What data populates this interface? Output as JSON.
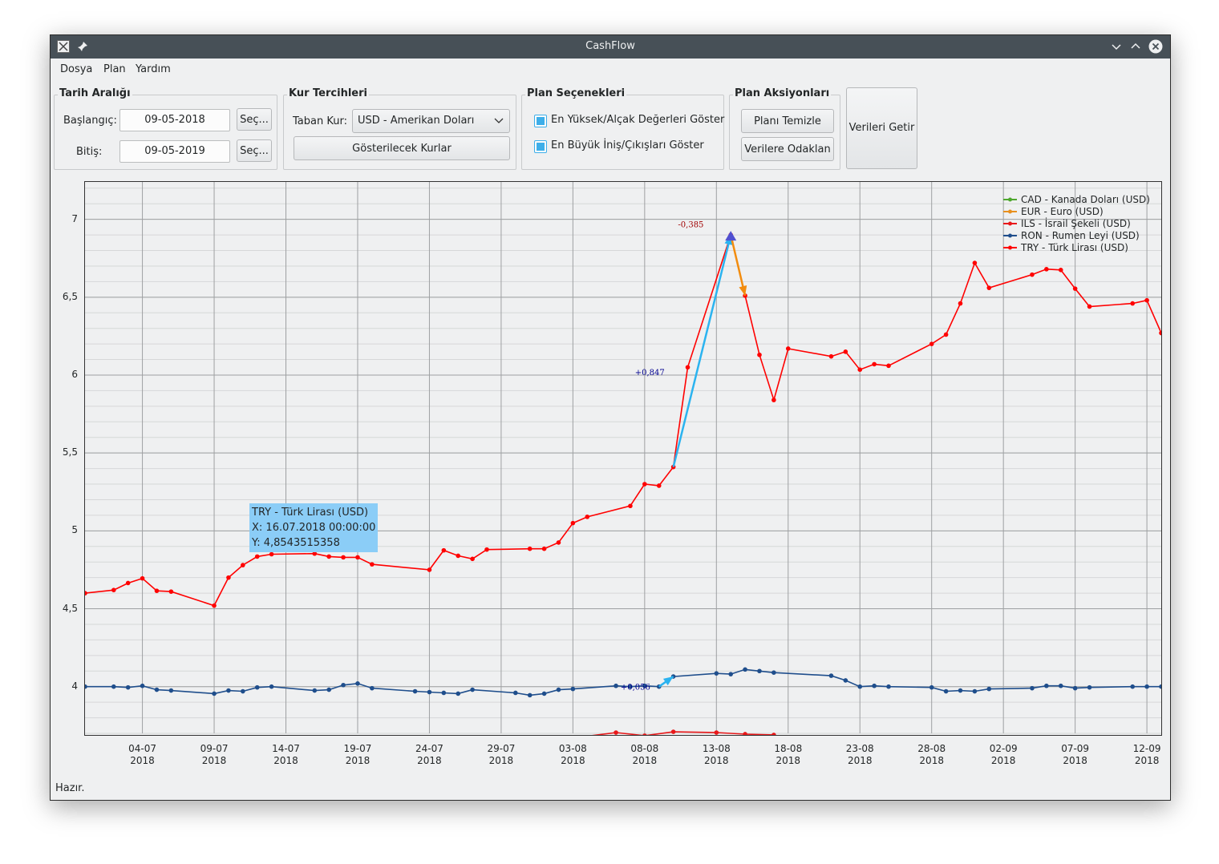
{
  "window": {
    "title": "CashFlow",
    "status": "Hazır."
  },
  "menu": [
    "Dosya",
    "Plan",
    "Yardım"
  ],
  "date_range": {
    "title": "Tarih Aralığı",
    "start_label": "Başlangıç:",
    "start_value": "09-05-2018",
    "end_label": "Bitiş:",
    "end_value": "09-05-2019",
    "pick_label": "Seç..."
  },
  "currency_prefs": {
    "title": "Kur Tercihleri",
    "base_label": "Taban Kur:",
    "base_value": "USD - Amerikan Doları",
    "shown_button": "Gösterilecek Kurlar"
  },
  "plan_options": {
    "title": "Plan Seçenekleri",
    "option1": "En Yüksek/Alçak Değerleri Göster",
    "option1_checked": true,
    "option2": "En Büyük İniş/Çıkışları Göster",
    "option2_checked": true
  },
  "plan_actions": {
    "title": "Plan Aksiyonları",
    "clear": "Planı Temizle",
    "focus": "Verilere Odaklan"
  },
  "fetch_button": "Verileri Getir",
  "tooltip": {
    "line1": "TRY - Türk Lirası (USD)",
    "line2": "X: 16.07.2018 00:00:00",
    "line3": "Y: 4,8543515358"
  },
  "colors": {
    "CAD": "#4ea72e",
    "EUR": "#e8901e",
    "ILS": "#e8181a",
    "RON": "#1f4e8c",
    "TRY": "#ff0000",
    "rise_arrow": "#2bb3f0",
    "fall_arrow": "#f28c0f",
    "peak_marker": "#5050d0"
  },
  "chart_data": {
    "type": "line",
    "ylim": [
      3.7,
      7.24
    ],
    "yticks": [
      4,
      4.5,
      5,
      5.5,
      6,
      6.5,
      7
    ],
    "ytick_labels": [
      "4",
      "4,5",
      "5",
      "5,5",
      "6",
      "6,5",
      "7"
    ],
    "xlim": [
      "2018-06-30",
      "2018-09-13"
    ],
    "xticks": [
      {
        "date": "2018-07-04",
        "label1": "04-07",
        "label2": "2018"
      },
      {
        "date": "2018-07-09",
        "label1": "09-07",
        "label2": "2018"
      },
      {
        "date": "2018-07-14",
        "label1": "14-07",
        "label2": "2018"
      },
      {
        "date": "2018-07-19",
        "label1": "19-07",
        "label2": "2018"
      },
      {
        "date": "2018-07-24",
        "label1": "24-07",
        "label2": "2018"
      },
      {
        "date": "2018-07-29",
        "label1": "29-07",
        "label2": "2018"
      },
      {
        "date": "2018-08-03",
        "label1": "03-08",
        "label2": "2018"
      },
      {
        "date": "2018-08-08",
        "label1": "08-08",
        "label2": "2018"
      },
      {
        "date": "2018-08-13",
        "label1": "13-08",
        "label2": "2018"
      },
      {
        "date": "2018-08-18",
        "label1": "18-08",
        "label2": "2018"
      },
      {
        "date": "2018-08-23",
        "label1": "23-08",
        "label2": "2018"
      },
      {
        "date": "2018-08-28",
        "label1": "28-08",
        "label2": "2018"
      },
      {
        "date": "2018-09-02",
        "label1": "02-09",
        "label2": "2018"
      },
      {
        "date": "2018-09-07",
        "label1": "07-09",
        "label2": "2018"
      },
      {
        "date": "2018-09-12",
        "label1": "12-09",
        "label2": "2018"
      }
    ],
    "legend_position": "top-right",
    "series": [
      {
        "key": "CAD",
        "name": "CAD - Kanada Doları (USD)",
        "x": [],
        "y": []
      },
      {
        "key": "EUR",
        "name": "EUR - Euro (USD)",
        "x": [],
        "y": []
      },
      {
        "key": "ILS",
        "name": "ILS - İsrail Şekeli (USD)",
        "x": [
          "2018-08-03",
          "2018-08-06",
          "2018-08-08",
          "2018-08-10",
          "2018-08-13",
          "2018-08-15",
          "2018-08-17"
        ],
        "y": [
          3.67,
          3.705,
          3.685,
          3.71,
          3.705,
          3.695,
          3.69
        ]
      },
      {
        "key": "RON",
        "name": "RON - Rumen Leyi (USD)",
        "x": [
          "2018-06-30",
          "2018-07-02",
          "2018-07-03",
          "2018-07-04",
          "2018-07-05",
          "2018-07-06",
          "2018-07-09",
          "2018-07-10",
          "2018-07-11",
          "2018-07-12",
          "2018-07-13",
          "2018-07-16",
          "2018-07-17",
          "2018-07-18",
          "2018-07-19",
          "2018-07-20",
          "2018-07-23",
          "2018-07-24",
          "2018-07-25",
          "2018-07-26",
          "2018-07-27",
          "2018-07-30",
          "2018-07-31",
          "2018-08-01",
          "2018-08-02",
          "2018-08-03",
          "2018-08-06",
          "2018-08-07",
          "2018-08-08",
          "2018-08-09",
          "2018-08-10",
          "2018-08-13",
          "2018-08-14",
          "2018-08-15",
          "2018-08-16",
          "2018-08-17",
          "2018-08-21",
          "2018-08-22",
          "2018-08-23",
          "2018-08-24",
          "2018-08-25",
          "2018-08-28",
          "2018-08-29",
          "2018-08-30",
          "2018-08-31",
          "2018-09-01",
          "2018-09-04",
          "2018-09-05",
          "2018-09-06",
          "2018-09-07",
          "2018-09-08",
          "2018-09-11",
          "2018-09-12",
          "2018-09-13"
        ],
        "y": [
          4.0,
          4.0,
          3.995,
          4.005,
          3.98,
          3.975,
          3.955,
          3.975,
          3.97,
          3.995,
          4.0,
          3.975,
          3.98,
          4.01,
          4.02,
          3.99,
          3.97,
          3.965,
          3.96,
          3.955,
          3.98,
          3.96,
          3.945,
          3.955,
          3.98,
          3.985,
          4.005,
          4.0,
          4.005,
          4.0,
          4.065,
          4.085,
          4.08,
          4.11,
          4.1,
          4.09,
          4.07,
          4.04,
          4.0,
          4.005,
          4.0,
          3.995,
          3.97,
          3.975,
          3.97,
          3.985,
          3.99,
          4.005,
          4.005,
          3.99,
          3.995,
          4.0,
          4.0,
          4.0
        ]
      },
      {
        "key": "TRY",
        "name": "TRY - Türk Lirası (USD)",
        "x": [
          "2018-06-30",
          "2018-07-02",
          "2018-07-03",
          "2018-07-04",
          "2018-07-05",
          "2018-07-06",
          "2018-07-09",
          "2018-07-10",
          "2018-07-11",
          "2018-07-12",
          "2018-07-13",
          "2018-07-16",
          "2018-07-17",
          "2018-07-18",
          "2018-07-19",
          "2018-07-20",
          "2018-07-24",
          "2018-07-25",
          "2018-07-26",
          "2018-07-27",
          "2018-07-28",
          "2018-07-31",
          "2018-08-01",
          "2018-08-02",
          "2018-08-03",
          "2018-08-04",
          "2018-08-07",
          "2018-08-08",
          "2018-08-09",
          "2018-08-10",
          "2018-08-11",
          "2018-08-14",
          "2018-08-15",
          "2018-08-16",
          "2018-08-17",
          "2018-08-18",
          "2018-08-21",
          "2018-08-22",
          "2018-08-23",
          "2018-08-24",
          "2018-08-25",
          "2018-08-28",
          "2018-08-29",
          "2018-08-30",
          "2018-08-31",
          "2018-09-01",
          "2018-09-04",
          "2018-09-05",
          "2018-09-06",
          "2018-09-07",
          "2018-09-08",
          "2018-09-11",
          "2018-09-12",
          "2018-09-13"
        ],
        "y": [
          4.6,
          4.62,
          4.665,
          4.695,
          4.615,
          4.61,
          4.52,
          4.7,
          4.78,
          4.835,
          4.85,
          4.854,
          4.835,
          4.83,
          4.83,
          4.785,
          4.75,
          4.875,
          4.84,
          4.82,
          4.88,
          4.885,
          4.885,
          4.925,
          5.05,
          5.09,
          5.16,
          5.3,
          5.29,
          5.41,
          6.05,
          6.9,
          6.51,
          6.13,
          5.84,
          6.17,
          6.12,
          6.15,
          6.035,
          6.07,
          6.06,
          6.2,
          6.26,
          6.46,
          6.72,
          6.56,
          6.645,
          6.68,
          6.675,
          6.555,
          6.44,
          6.46,
          6.48,
          6.27
        ]
      }
    ],
    "annotations": [
      {
        "text": "-0,385",
        "x": "2018-08-12",
        "y": 6.95,
        "color": "#a00000"
      },
      {
        "text": "+0,847",
        "x": "2018-08-09",
        "y": 6.0,
        "color": "#000090"
      },
      {
        "text": "+0,056",
        "x": "2018-08-08",
        "y": 3.98,
        "color": "#000090"
      }
    ]
  }
}
